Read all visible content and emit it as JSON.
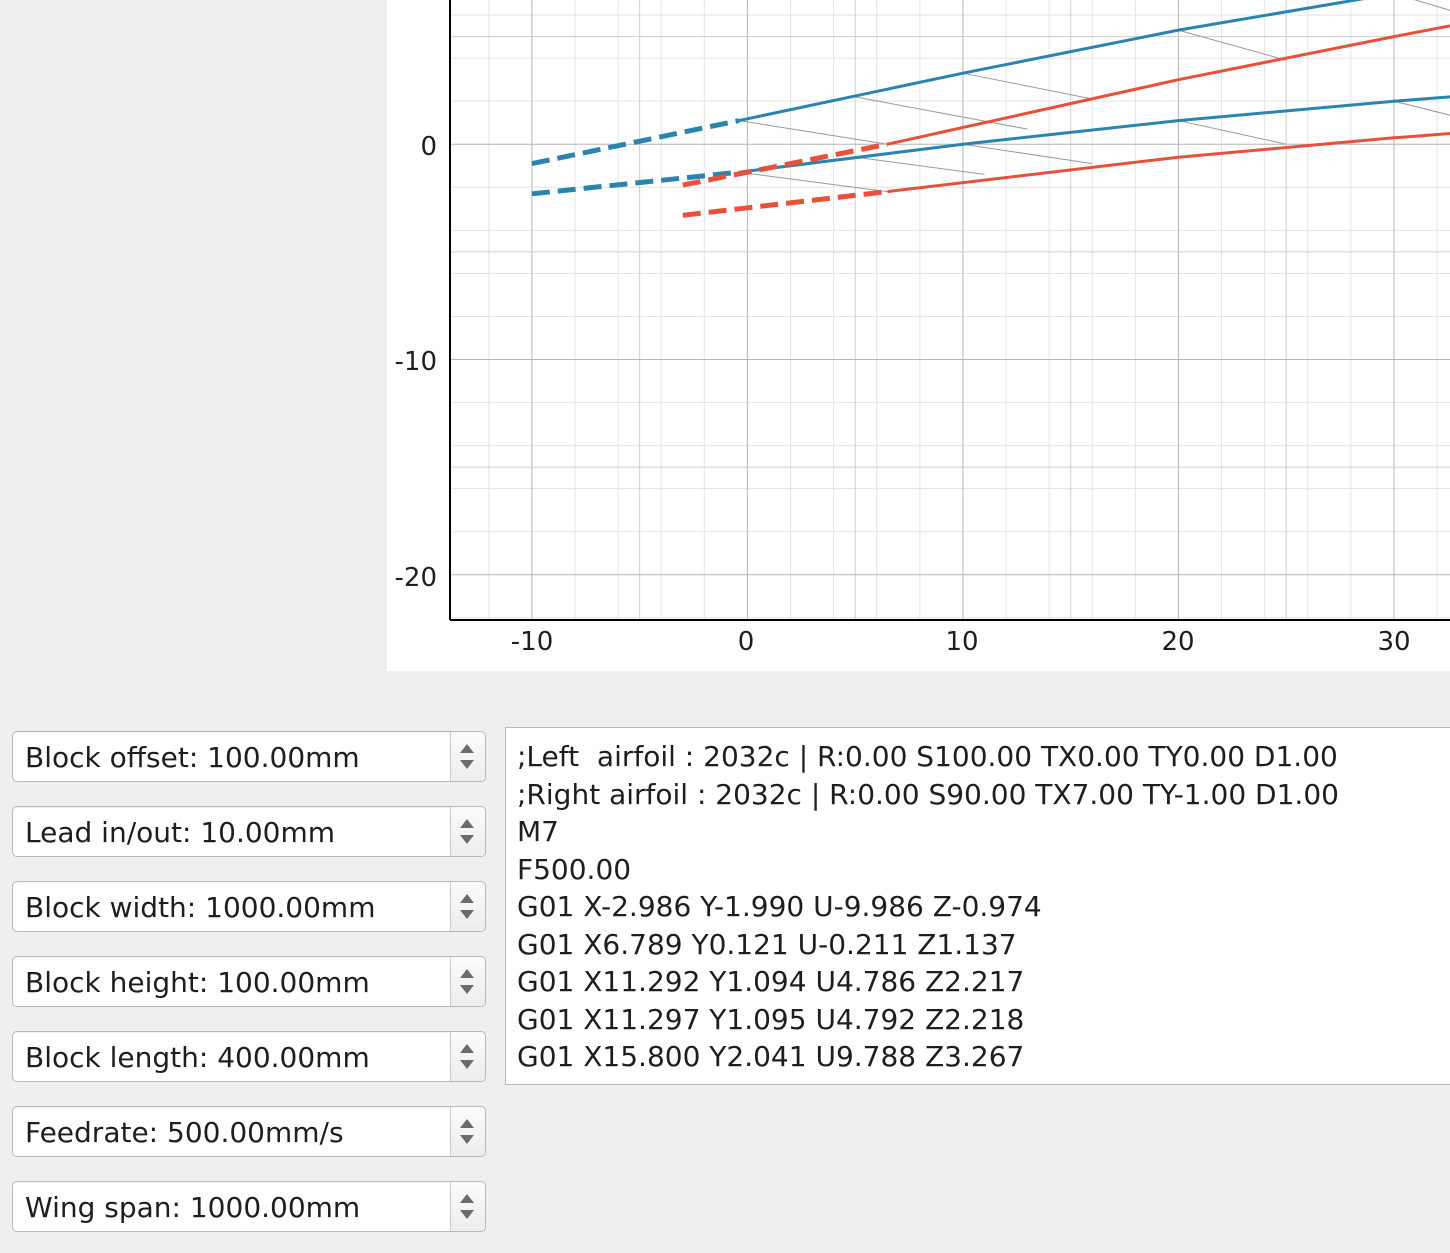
{
  "plot": {
    "y_tick_labels": [
      "0",
      "-10",
      "-20"
    ],
    "x_tick_labels": [
      "-10",
      "0",
      "10",
      "20",
      "30"
    ],
    "colors": {
      "left_profile": "#2b84ad",
      "right_profile": "#e8503a",
      "grid_major": "#b5b5b5",
      "grid_minor": "#e3e3e3",
      "axis": "#000000"
    }
  },
  "chart_data": {
    "type": "line",
    "xlim": [
      -13.8,
      32.6
    ],
    "ylim": [
      -22.1,
      6.7
    ],
    "x_ticks": [
      -10,
      0,
      10,
      20,
      30
    ],
    "y_ticks": [
      0,
      -10,
      -20
    ],
    "grid": true,
    "series": [
      {
        "style": "solid",
        "color": "#2b84ad",
        "x": [
          -0.4,
          10,
          20,
          30,
          32.6
        ],
        "y": [
          1.1,
          3.3,
          5.3,
          7.0,
          7.5
        ]
      },
      {
        "style": "solid",
        "color": "#2b84ad",
        "x": [
          -0.4,
          10,
          20,
          30,
          32.6
        ],
        "y": [
          -1.3,
          0.0,
          1.1,
          2.0,
          2.2
        ]
      },
      {
        "style": "dashed",
        "color": "#2b84ad",
        "x": [
          -10,
          -0.4
        ],
        "y": [
          -0.9,
          1.1
        ]
      },
      {
        "style": "dashed",
        "color": "#2b84ad",
        "x": [
          -10,
          -0.4
        ],
        "y": [
          -2.3,
          -1.3
        ]
      },
      {
        "style": "solid",
        "color": "#e8503a",
        "x": [
          6.5,
          20,
          30,
          32.6
        ],
        "y": [
          0.0,
          3.0,
          5.0,
          5.5
        ]
      },
      {
        "style": "solid",
        "color": "#e8503a",
        "x": [
          6.5,
          20,
          30,
          32.6
        ],
        "y": [
          -2.2,
          -0.6,
          0.3,
          0.5
        ]
      },
      {
        "style": "dashed",
        "color": "#e8503a",
        "x": [
          -3,
          6.5
        ],
        "y": [
          -1.9,
          0.0
        ]
      },
      {
        "style": "dashed",
        "color": "#e8503a",
        "x": [
          -3,
          6.5
        ],
        "y": [
          -3.3,
          -2.2
        ]
      }
    ],
    "connectors": [
      [
        -0.4,
        1.1,
        6.5,
        0.0
      ],
      [
        -0.4,
        -1.3,
        6.5,
        -2.2
      ],
      [
        5,
        2.2,
        13,
        0.7
      ],
      [
        5,
        -0.6,
        11,
        -1.4
      ],
      [
        10,
        3.3,
        16,
        2.1
      ],
      [
        10,
        0.0,
        16,
        -0.9
      ],
      [
        20,
        5.3,
        25,
        3.9
      ],
      [
        20,
        1.1,
        25,
        0.0
      ],
      [
        30,
        7.0,
        34,
        5.8
      ],
      [
        30,
        2.0,
        34,
        1.0
      ]
    ]
  },
  "controls": {
    "block_offset": "Block offset: 100.00mm",
    "lead_in_out": "Lead in/out: 10.00mm",
    "block_width": "Block width: 1000.00mm",
    "block_height": "Block height: 100.00mm",
    "block_length": "Block length: 400.00mm",
    "feedrate": "Feedrate: 500.00mm/s",
    "wing_span": "Wing span: 1000.00mm"
  },
  "gcode": {
    "lines": [
      ";Left  airfoil : 2032c | R:0.00 S100.00 TX0.00 TY0.00 D1.00",
      ";Right airfoil : 2032c | R:0.00 S90.00 TX7.00 TY-1.00 D1.00",
      "M7",
      "F500.00",
      "G01 X-2.986 Y-1.990 U-9.986 Z-0.974",
      "G01 X6.789 Y0.121 U-0.211 Z1.137",
      "G01 X11.292 Y1.094 U4.786 Z2.217",
      "G01 X11.297 Y1.095 U4.792 Z2.218",
      "G01 X15.800 Y2.041 U9.788 Z3.267"
    ]
  }
}
